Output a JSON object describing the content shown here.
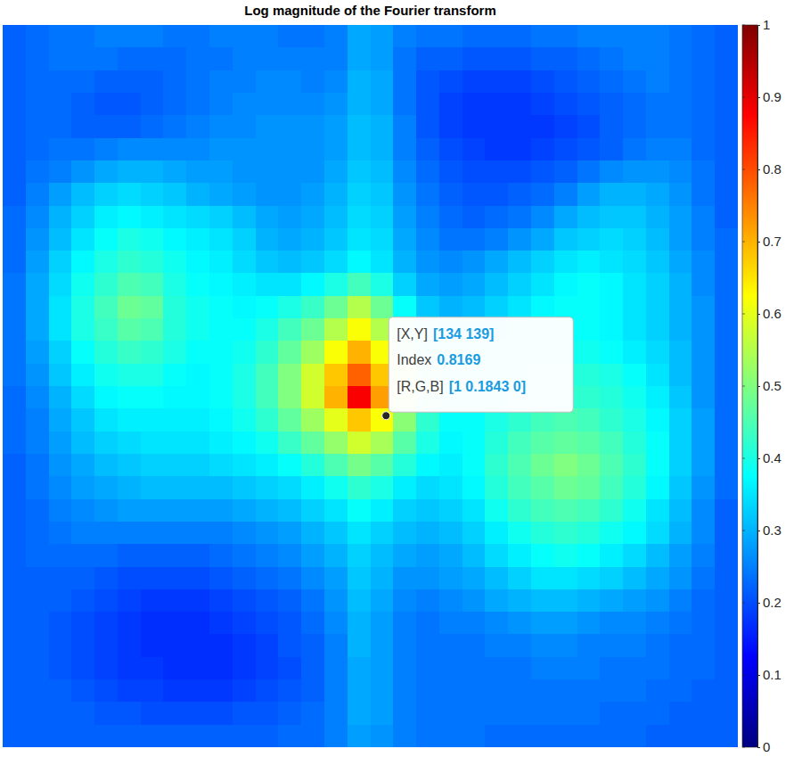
{
  "chart_data": {
    "type": "heatmap",
    "title": "Log magnitude of the Fourier transform",
    "color": "jet",
    "tick_labels": false,
    "xlim": [
      0.5,
      256.5
    ],
    "ylim": [
      0.5,
      256.5
    ],
    "colorbar": {
      "range": [
        0,
        1
      ],
      "ticks": [
        0,
        0.1,
        0.2,
        0.3,
        0.4,
        0.5,
        0.6,
        0.7,
        0.8,
        0.9,
        1
      ]
    },
    "datatip": {
      "x": 134,
      "y": 139,
      "rows": [
        {
          "name": "[X,Y]",
          "value": "[134 139]"
        },
        {
          "name": "Index",
          "value": "0.8169"
        },
        {
          "name": "[R,G,B]",
          "value": "[1 0.1843 0]"
        }
      ]
    },
    "cells": [
      [
        0.22,
        0.23,
        0.24,
        0.24,
        0.25,
        0.25,
        0.25,
        0.24,
        0.24,
        0.25,
        0.25,
        0.25,
        0.24,
        0.24,
        0.25,
        0.29,
        0.28,
        0.25,
        0.24,
        0.24,
        0.23,
        0.23,
        0.23,
        0.24,
        0.24,
        0.25,
        0.25,
        0.25,
        0.25,
        0.24,
        0.23,
        0.22
      ],
      [
        0.22,
        0.23,
        0.24,
        0.24,
        0.24,
        0.23,
        0.23,
        0.23,
        0.24,
        0.24,
        0.25,
        0.25,
        0.25,
        0.25,
        0.25,
        0.29,
        0.28,
        0.24,
        0.22,
        0.22,
        0.21,
        0.21,
        0.21,
        0.22,
        0.22,
        0.23,
        0.24,
        0.25,
        0.25,
        0.24,
        0.23,
        0.22
      ],
      [
        0.22,
        0.23,
        0.23,
        0.23,
        0.22,
        0.22,
        0.22,
        0.23,
        0.24,
        0.25,
        0.25,
        0.26,
        0.26,
        0.25,
        0.26,
        0.3,
        0.29,
        0.24,
        0.21,
        0.2,
        0.19,
        0.19,
        0.19,
        0.2,
        0.21,
        0.22,
        0.23,
        0.24,
        0.25,
        0.24,
        0.23,
        0.22
      ],
      [
        0.22,
        0.23,
        0.23,
        0.22,
        0.21,
        0.21,
        0.22,
        0.23,
        0.24,
        0.25,
        0.26,
        0.26,
        0.26,
        0.26,
        0.27,
        0.3,
        0.29,
        0.24,
        0.21,
        0.19,
        0.18,
        0.18,
        0.18,
        0.19,
        0.2,
        0.21,
        0.22,
        0.23,
        0.24,
        0.24,
        0.23,
        0.22
      ],
      [
        0.22,
        0.23,
        0.23,
        0.22,
        0.22,
        0.22,
        0.23,
        0.24,
        0.25,
        0.26,
        0.26,
        0.27,
        0.27,
        0.27,
        0.28,
        0.31,
        0.3,
        0.25,
        0.21,
        0.19,
        0.18,
        0.18,
        0.18,
        0.18,
        0.19,
        0.2,
        0.22,
        0.23,
        0.24,
        0.24,
        0.23,
        0.22
      ],
      [
        0.22,
        0.23,
        0.24,
        0.24,
        0.25,
        0.26,
        0.26,
        0.26,
        0.26,
        0.27,
        0.27,
        0.27,
        0.27,
        0.27,
        0.28,
        0.31,
        0.3,
        0.25,
        0.22,
        0.2,
        0.19,
        0.18,
        0.18,
        0.19,
        0.2,
        0.21,
        0.22,
        0.24,
        0.25,
        0.25,
        0.23,
        0.22
      ],
      [
        0.22,
        0.24,
        0.25,
        0.27,
        0.29,
        0.3,
        0.3,
        0.29,
        0.28,
        0.28,
        0.27,
        0.27,
        0.27,
        0.27,
        0.29,
        0.32,
        0.31,
        0.26,
        0.23,
        0.21,
        0.2,
        0.2,
        0.2,
        0.21,
        0.22,
        0.24,
        0.26,
        0.27,
        0.27,
        0.26,
        0.24,
        0.22
      ],
      [
        0.22,
        0.25,
        0.28,
        0.31,
        0.33,
        0.34,
        0.33,
        0.32,
        0.3,
        0.29,
        0.28,
        0.27,
        0.27,
        0.28,
        0.3,
        0.33,
        0.32,
        0.27,
        0.24,
        0.22,
        0.21,
        0.21,
        0.22,
        0.23,
        0.25,
        0.28,
        0.3,
        0.3,
        0.29,
        0.27,
        0.24,
        0.22
      ],
      [
        0.23,
        0.26,
        0.3,
        0.33,
        0.36,
        0.37,
        0.36,
        0.35,
        0.34,
        0.33,
        0.31,
        0.29,
        0.28,
        0.29,
        0.31,
        0.34,
        0.33,
        0.28,
        0.25,
        0.23,
        0.22,
        0.23,
        0.24,
        0.26,
        0.29,
        0.31,
        0.32,
        0.32,
        0.3,
        0.28,
        0.25,
        0.22
      ],
      [
        0.23,
        0.27,
        0.31,
        0.35,
        0.38,
        0.4,
        0.39,
        0.37,
        0.36,
        0.35,
        0.33,
        0.3,
        0.29,
        0.3,
        0.32,
        0.35,
        0.34,
        0.29,
        0.26,
        0.24,
        0.24,
        0.25,
        0.27,
        0.29,
        0.32,
        0.33,
        0.34,
        0.33,
        0.31,
        0.28,
        0.25,
        0.23
      ],
      [
        0.23,
        0.28,
        0.33,
        0.37,
        0.4,
        0.42,
        0.41,
        0.39,
        0.37,
        0.36,
        0.34,
        0.32,
        0.31,
        0.32,
        0.34,
        0.37,
        0.35,
        0.3,
        0.27,
        0.26,
        0.27,
        0.29,
        0.31,
        0.33,
        0.35,
        0.36,
        0.35,
        0.34,
        0.32,
        0.29,
        0.26,
        0.23
      ],
      [
        0.24,
        0.29,
        0.34,
        0.39,
        0.42,
        0.45,
        0.44,
        0.4,
        0.38,
        0.37,
        0.36,
        0.35,
        0.35,
        0.37,
        0.4,
        0.44,
        0.4,
        0.33,
        0.29,
        0.28,
        0.29,
        0.31,
        0.33,
        0.35,
        0.37,
        0.38,
        0.37,
        0.35,
        0.33,
        0.3,
        0.26,
        0.23
      ],
      [
        0.24,
        0.29,
        0.35,
        0.4,
        0.44,
        0.48,
        0.47,
        0.41,
        0.39,
        0.38,
        0.37,
        0.38,
        0.4,
        0.43,
        0.48,
        0.55,
        0.48,
        0.38,
        0.32,
        0.3,
        0.31,
        0.33,
        0.35,
        0.37,
        0.38,
        0.38,
        0.37,
        0.35,
        0.33,
        0.3,
        0.27,
        0.23
      ],
      [
        0.24,
        0.29,
        0.35,
        0.4,
        0.43,
        0.46,
        0.45,
        0.41,
        0.39,
        0.38,
        0.38,
        0.4,
        0.44,
        0.48,
        0.55,
        0.62,
        0.55,
        0.44,
        0.36,
        0.33,
        0.33,
        0.34,
        0.36,
        0.38,
        0.38,
        0.38,
        0.37,
        0.35,
        0.33,
        0.3,
        0.27,
        0.23
      ],
      [
        0.24,
        0.28,
        0.33,
        0.38,
        0.41,
        0.43,
        0.42,
        0.4,
        0.38,
        0.38,
        0.39,
        0.42,
        0.47,
        0.53,
        0.62,
        0.7,
        0.62,
        0.5,
        0.4,
        0.36,
        0.35,
        0.36,
        0.38,
        0.39,
        0.39,
        0.39,
        0.38,
        0.36,
        0.34,
        0.31,
        0.27,
        0.23
      ],
      [
        0.24,
        0.27,
        0.32,
        0.36,
        0.39,
        0.4,
        0.4,
        0.38,
        0.37,
        0.38,
        0.4,
        0.44,
        0.5,
        0.58,
        0.68,
        0.78,
        0.68,
        0.55,
        0.43,
        0.38,
        0.37,
        0.38,
        0.4,
        0.41,
        0.41,
        0.41,
        0.4,
        0.38,
        0.35,
        0.31,
        0.27,
        0.23
      ],
      [
        0.23,
        0.26,
        0.3,
        0.34,
        0.37,
        0.38,
        0.38,
        0.37,
        0.37,
        0.38,
        0.4,
        0.44,
        0.5,
        0.58,
        0.7,
        0.88,
        0.72,
        0.56,
        0.44,
        0.39,
        0.38,
        0.39,
        0.41,
        0.42,
        0.42,
        0.42,
        0.41,
        0.39,
        0.36,
        0.32,
        0.27,
        0.23
      ],
      [
        0.23,
        0.25,
        0.29,
        0.32,
        0.35,
        0.36,
        0.36,
        0.36,
        0.36,
        0.37,
        0.39,
        0.42,
        0.47,
        0.53,
        0.6,
        0.68,
        0.62,
        0.51,
        0.42,
        0.38,
        0.38,
        0.4,
        0.42,
        0.44,
        0.45,
        0.44,
        0.42,
        0.4,
        0.37,
        0.33,
        0.28,
        0.23
      ],
      [
        0.23,
        0.25,
        0.28,
        0.31,
        0.33,
        0.34,
        0.35,
        0.35,
        0.35,
        0.36,
        0.37,
        0.39,
        0.43,
        0.47,
        0.52,
        0.58,
        0.54,
        0.46,
        0.4,
        0.37,
        0.38,
        0.41,
        0.44,
        0.46,
        0.47,
        0.46,
        0.44,
        0.41,
        0.38,
        0.33,
        0.28,
        0.23
      ],
      [
        0.22,
        0.24,
        0.27,
        0.29,
        0.31,
        0.32,
        0.33,
        0.33,
        0.33,
        0.34,
        0.35,
        0.36,
        0.38,
        0.41,
        0.45,
        0.49,
        0.46,
        0.41,
        0.37,
        0.36,
        0.38,
        0.42,
        0.45,
        0.48,
        0.5,
        0.48,
        0.45,
        0.42,
        0.38,
        0.33,
        0.28,
        0.23
      ],
      [
        0.22,
        0.24,
        0.26,
        0.28,
        0.29,
        0.3,
        0.31,
        0.31,
        0.31,
        0.31,
        0.32,
        0.33,
        0.34,
        0.36,
        0.39,
        0.42,
        0.4,
        0.36,
        0.34,
        0.35,
        0.37,
        0.41,
        0.44,
        0.46,
        0.48,
        0.47,
        0.44,
        0.41,
        0.37,
        0.32,
        0.27,
        0.23
      ],
      [
        0.22,
        0.23,
        0.25,
        0.26,
        0.27,
        0.28,
        0.28,
        0.28,
        0.28,
        0.28,
        0.29,
        0.3,
        0.31,
        0.33,
        0.35,
        0.38,
        0.36,
        0.33,
        0.32,
        0.33,
        0.35,
        0.39,
        0.42,
        0.44,
        0.45,
        0.44,
        0.42,
        0.39,
        0.35,
        0.31,
        0.26,
        0.22
      ],
      [
        0.22,
        0.23,
        0.24,
        0.25,
        0.25,
        0.25,
        0.25,
        0.25,
        0.25,
        0.25,
        0.26,
        0.27,
        0.28,
        0.3,
        0.32,
        0.35,
        0.33,
        0.31,
        0.3,
        0.31,
        0.33,
        0.36,
        0.39,
        0.41,
        0.42,
        0.41,
        0.39,
        0.37,
        0.34,
        0.3,
        0.26,
        0.22
      ],
      [
        0.22,
        0.23,
        0.23,
        0.23,
        0.23,
        0.22,
        0.22,
        0.22,
        0.22,
        0.23,
        0.24,
        0.25,
        0.26,
        0.28,
        0.3,
        0.33,
        0.31,
        0.29,
        0.28,
        0.29,
        0.31,
        0.34,
        0.36,
        0.38,
        0.39,
        0.38,
        0.36,
        0.34,
        0.31,
        0.28,
        0.25,
        0.22
      ],
      [
        0.22,
        0.22,
        0.22,
        0.22,
        0.21,
        0.2,
        0.2,
        0.2,
        0.2,
        0.21,
        0.22,
        0.23,
        0.24,
        0.26,
        0.28,
        0.32,
        0.3,
        0.27,
        0.27,
        0.28,
        0.29,
        0.31,
        0.33,
        0.35,
        0.35,
        0.34,
        0.33,
        0.31,
        0.29,
        0.27,
        0.24,
        0.22
      ],
      [
        0.22,
        0.22,
        0.22,
        0.21,
        0.2,
        0.19,
        0.18,
        0.18,
        0.18,
        0.19,
        0.2,
        0.21,
        0.22,
        0.24,
        0.27,
        0.31,
        0.29,
        0.26,
        0.25,
        0.26,
        0.27,
        0.29,
        0.3,
        0.31,
        0.31,
        0.3,
        0.29,
        0.28,
        0.27,
        0.25,
        0.23,
        0.22
      ],
      [
        0.22,
        0.22,
        0.21,
        0.2,
        0.19,
        0.18,
        0.17,
        0.17,
        0.17,
        0.18,
        0.19,
        0.2,
        0.21,
        0.23,
        0.26,
        0.3,
        0.28,
        0.25,
        0.24,
        0.25,
        0.25,
        0.26,
        0.27,
        0.28,
        0.28,
        0.27,
        0.26,
        0.26,
        0.25,
        0.24,
        0.23,
        0.22
      ],
      [
        0.22,
        0.22,
        0.21,
        0.2,
        0.19,
        0.18,
        0.17,
        0.17,
        0.17,
        0.17,
        0.18,
        0.19,
        0.21,
        0.22,
        0.25,
        0.3,
        0.28,
        0.25,
        0.24,
        0.24,
        0.24,
        0.25,
        0.25,
        0.26,
        0.26,
        0.25,
        0.25,
        0.25,
        0.24,
        0.23,
        0.23,
        0.22
      ],
      [
        0.22,
        0.22,
        0.21,
        0.2,
        0.19,
        0.18,
        0.18,
        0.17,
        0.17,
        0.17,
        0.18,
        0.19,
        0.2,
        0.22,
        0.25,
        0.29,
        0.28,
        0.25,
        0.24,
        0.24,
        0.24,
        0.24,
        0.24,
        0.25,
        0.25,
        0.25,
        0.24,
        0.24,
        0.24,
        0.23,
        0.23,
        0.22
      ],
      [
        0.22,
        0.22,
        0.22,
        0.21,
        0.2,
        0.19,
        0.19,
        0.18,
        0.18,
        0.18,
        0.19,
        0.2,
        0.21,
        0.22,
        0.25,
        0.29,
        0.28,
        0.25,
        0.24,
        0.24,
        0.24,
        0.24,
        0.24,
        0.24,
        0.24,
        0.24,
        0.24,
        0.24,
        0.23,
        0.23,
        0.22,
        0.22
      ],
      [
        0.22,
        0.22,
        0.22,
        0.22,
        0.21,
        0.21,
        0.2,
        0.2,
        0.2,
        0.2,
        0.21,
        0.21,
        0.22,
        0.23,
        0.25,
        0.29,
        0.28,
        0.25,
        0.24,
        0.24,
        0.24,
        0.24,
        0.24,
        0.24,
        0.24,
        0.24,
        0.23,
        0.23,
        0.23,
        0.22,
        0.22,
        0.22
      ],
      [
        0.22,
        0.22,
        0.22,
        0.22,
        0.22,
        0.22,
        0.22,
        0.22,
        0.22,
        0.22,
        0.22,
        0.22,
        0.23,
        0.23,
        0.25,
        0.28,
        0.27,
        0.25,
        0.24,
        0.24,
        0.24,
        0.23,
        0.23,
        0.23,
        0.23,
        0.23,
        0.23,
        0.23,
        0.22,
        0.22,
        0.22,
        0.22
      ]
    ]
  }
}
